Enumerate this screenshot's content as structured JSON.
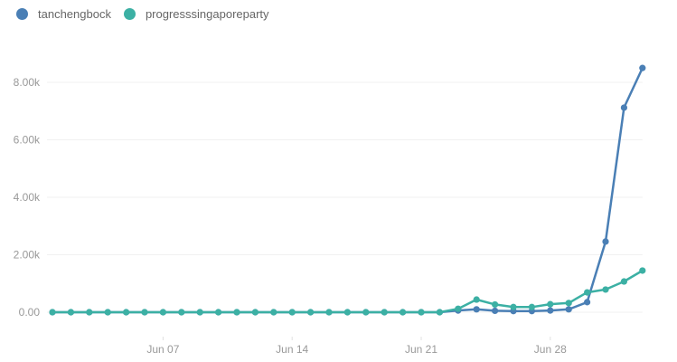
{
  "legend": [
    {
      "label": "tanchengbock",
      "color": "#4a7fb5"
    },
    {
      "label": "progresssingaporeparty",
      "color": "#3cb0a4"
    }
  ],
  "chart_data": {
    "type": "line",
    "title": "",
    "xlabel": "",
    "ylabel": "",
    "ylim": [
      0,
      8500
    ],
    "y_ticks": [
      {
        "value": 0,
        "label": "0.00"
      },
      {
        "value": 2000,
        "label": "2.00k"
      },
      {
        "value": 4000,
        "label": "4.00k"
      },
      {
        "value": 6000,
        "label": "6.00k"
      },
      {
        "value": 8000,
        "label": "8.00k"
      }
    ],
    "x_ticks": [
      {
        "index": 6,
        "label": "Jun 07"
      },
      {
        "index": 13,
        "label": "Jun 14"
      },
      {
        "index": 20,
        "label": "Jun 21"
      },
      {
        "index": 27,
        "label": "Jun 28"
      }
    ],
    "grid": true,
    "legend_position": "top-left",
    "x": [
      "Jun 01",
      "Jun 02",
      "Jun 03",
      "Jun 04",
      "Jun 05",
      "Jun 06",
      "Jun 07",
      "Jun 08",
      "Jun 09",
      "Jun 10",
      "Jun 11",
      "Jun 12",
      "Jun 13",
      "Jun 14",
      "Jun 15",
      "Jun 16",
      "Jun 17",
      "Jun 18",
      "Jun 19",
      "Jun 20",
      "Jun 21",
      "Jun 22",
      "Jun 23",
      "Jun 24",
      "Jun 25",
      "Jun 26",
      "Jun 27",
      "Jun 28",
      "Jun 29",
      "Jun 30",
      "Jul 01",
      "Jul 02",
      "Jul 03"
    ],
    "series": [
      {
        "name": "tanchengbock",
        "color": "#4a7fb5",
        "values": [
          0,
          0,
          0,
          0,
          0,
          0,
          0,
          0,
          0,
          0,
          0,
          0,
          0,
          0,
          0,
          0,
          0,
          0,
          0,
          0,
          0,
          0,
          60,
          100,
          50,
          40,
          40,
          60,
          100,
          350,
          2460,
          7120,
          8500
        ]
      },
      {
        "name": "progresssingaporeparty",
        "color": "#3cb0a4",
        "values": [
          0,
          0,
          0,
          0,
          0,
          0,
          0,
          0,
          0,
          0,
          0,
          0,
          0,
          0,
          0,
          0,
          0,
          0,
          0,
          0,
          0,
          0,
          120,
          440,
          270,
          180,
          180,
          280,
          320,
          690,
          790,
          1070,
          1450
        ]
      }
    ]
  }
}
